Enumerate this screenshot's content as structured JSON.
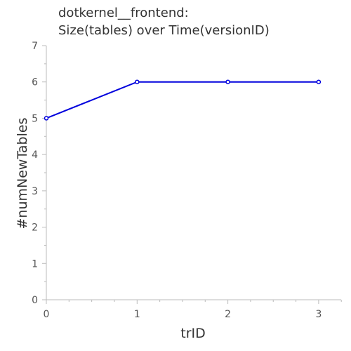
{
  "title": {
    "line1": "dotkernel__frontend:",
    "line2": "Size(tables) over Time(versionID)"
  },
  "chart_data": {
    "type": "line",
    "title": "dotkernel__frontend: Size(tables) over Time(versionID)",
    "xlabel": "trID",
    "ylabel": "#numNewTables",
    "x": [
      0,
      1,
      2,
      3
    ],
    "series": [
      {
        "values": [
          5,
          6,
          6,
          6
        ],
        "color": "#0000dd"
      }
    ],
    "xlim": [
      0,
      3.25
    ],
    "ylim": [
      0,
      7
    ],
    "x_ticks": [
      0,
      1,
      2,
      3
    ],
    "y_ticks": [
      0,
      1,
      2,
      3,
      4,
      5,
      6,
      7
    ],
    "grid": false,
    "legend": "none",
    "colors": {
      "line": "#0000dd",
      "axis": "#bbbbbb",
      "text": "#555555"
    }
  }
}
